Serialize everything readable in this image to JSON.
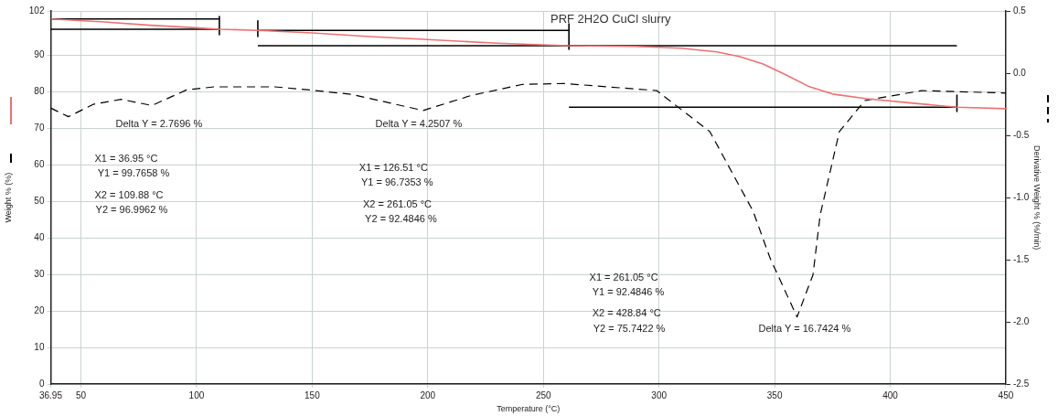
{
  "chart_data": {
    "type": "line",
    "title": "PRF 2H2O CuCl slurry",
    "xlabel": "Temperature (°C)",
    "ylabel": "Weight % (%)",
    "y2label": "Derivative Weight % (%/min)",
    "xlim": [
      36.95,
      450
    ],
    "xticks": [
      36.95,
      50,
      100,
      150,
      200,
      250,
      300,
      350,
      400,
      450
    ],
    "ylim": [
      0,
      102
    ],
    "yticks": [
      0,
      10,
      20,
      30,
      40,
      50,
      60,
      70,
      80,
      90,
      102
    ],
    "y2lim": [
      -2.5,
      0.5
    ],
    "y2ticks": [
      {
        "value": -2.5,
        "label": "-2.5"
      },
      {
        "value": -2,
        "label": "-2.0"
      },
      -1.5,
      {
        "value": -1,
        "label": "-1.0"
      },
      -0.5,
      {
        "value": 0,
        "label": "0.0"
      },
      0.5
    ],
    "grid": true,
    "legend": false,
    "marker": "none",
    "series": [
      {
        "color": "#f07070",
        "line_style": "solid",
        "x": [
          36.95,
          60,
          80,
          100,
          109.88,
          126.51,
          150,
          175,
          200,
          230,
          261.05,
          290,
          310,
          325,
          335,
          345,
          355,
          365,
          375,
          390,
          410,
          428.84,
          450
        ],
        "values": [
          99.8,
          99.0,
          98.1,
          97.4,
          97.0,
          96.7,
          96.0,
          95.0,
          94.2,
          93.2,
          92.5,
          92.3,
          91.8,
          90.8,
          89.5,
          87.5,
          84.5,
          81.3,
          79.3,
          78.0,
          76.8,
          75.7,
          75.3
        ]
      },
      {
        "color": "#000000",
        "line_style": "dashed",
        "axis": "y2",
        "x": [
          36.95,
          44.6,
          55.4,
          67.4,
          80.7,
          95.6,
          107.5,
          134,
          149,
          167,
          198,
          218.7,
          241,
          259,
          299,
          322,
          340.7,
          348,
          359.7,
          366.6,
          369.7,
          378,
          389,
          413.7,
          450
        ],
        "values": [
          -0.28,
          -0.35,
          -0.25,
          -0.21,
          -0.26,
          -0.135,
          -0.11,
          -0.11,
          -0.135,
          -0.17,
          -0.3,
          -0.18,
          -0.09,
          -0.083,
          -0.14,
          -0.47,
          -1.11,
          -1.485,
          -1.96,
          -1.62,
          -1.14,
          -0.47,
          -0.22,
          -0.14,
          -0.16
        ]
      },
      {
        "color": "#000000",
        "line_style": "solid",
        "x": [
          36.95,
          109.88
        ],
        "values": [
          99.8,
          99.8
        ]
      },
      {
        "color": "#000000",
        "line_style": "solid",
        "x": [
          36.95,
          109.88
        ],
        "values": [
          97.0,
          97.0
        ]
      },
      {
        "color": "#000000",
        "line_style": "solid",
        "x": [
          109.88,
          109.88
        ],
        "values": [
          100.5,
          95.5
        ]
      },
      {
        "color": "#000000",
        "line_style": "solid",
        "x": [
          126.51,
          261.05
        ],
        "values": [
          96.7,
          96.7
        ]
      },
      {
        "color": "#000000",
        "line_style": "solid",
        "x": [
          126.51,
          428.84
        ],
        "values": [
          92.5,
          92.5
        ]
      },
      {
        "color": "#000000",
        "line_style": "solid",
        "x": [
          126.51,
          126.51
        ],
        "values": [
          99.3,
          95.0
        ]
      },
      {
        "color": "#000000",
        "line_style": "solid",
        "x": [
          261.05,
          261.05
        ],
        "values": [
          98.5,
          91.5
        ]
      },
      {
        "color": "#000000",
        "line_style": "solid",
        "x": [
          261.05,
          428.84
        ],
        "values": [
          75.7,
          75.7
        ]
      },
      {
        "color": "#000000",
        "line_style": "solid",
        "x": [
          428.84,
          428.84
        ],
        "values": [
          79.0,
          74.5
        ]
      }
    ],
    "annotations": [
      "Delta Y = 2.7696 %",
      "X1 = 36.95 °C",
      "Y1 = 99.7658 %",
      "X2 = 109.88 °C",
      "Y2 = 96.9962 %",
      "Delta Y = 4.2507 %",
      "X1 = 126.51 °C",
      "Y1 = 96.7353 %",
      "X2 = 261.05 °C",
      "Y2 = 92.4846 %",
      "X1 = 261.05 °C",
      "Y1 = 92.4846 %",
      "X2 = 428.84 °C",
      "Y2 = 75.7422 %",
      "Delta Y = 16.7424 %"
    ]
  }
}
